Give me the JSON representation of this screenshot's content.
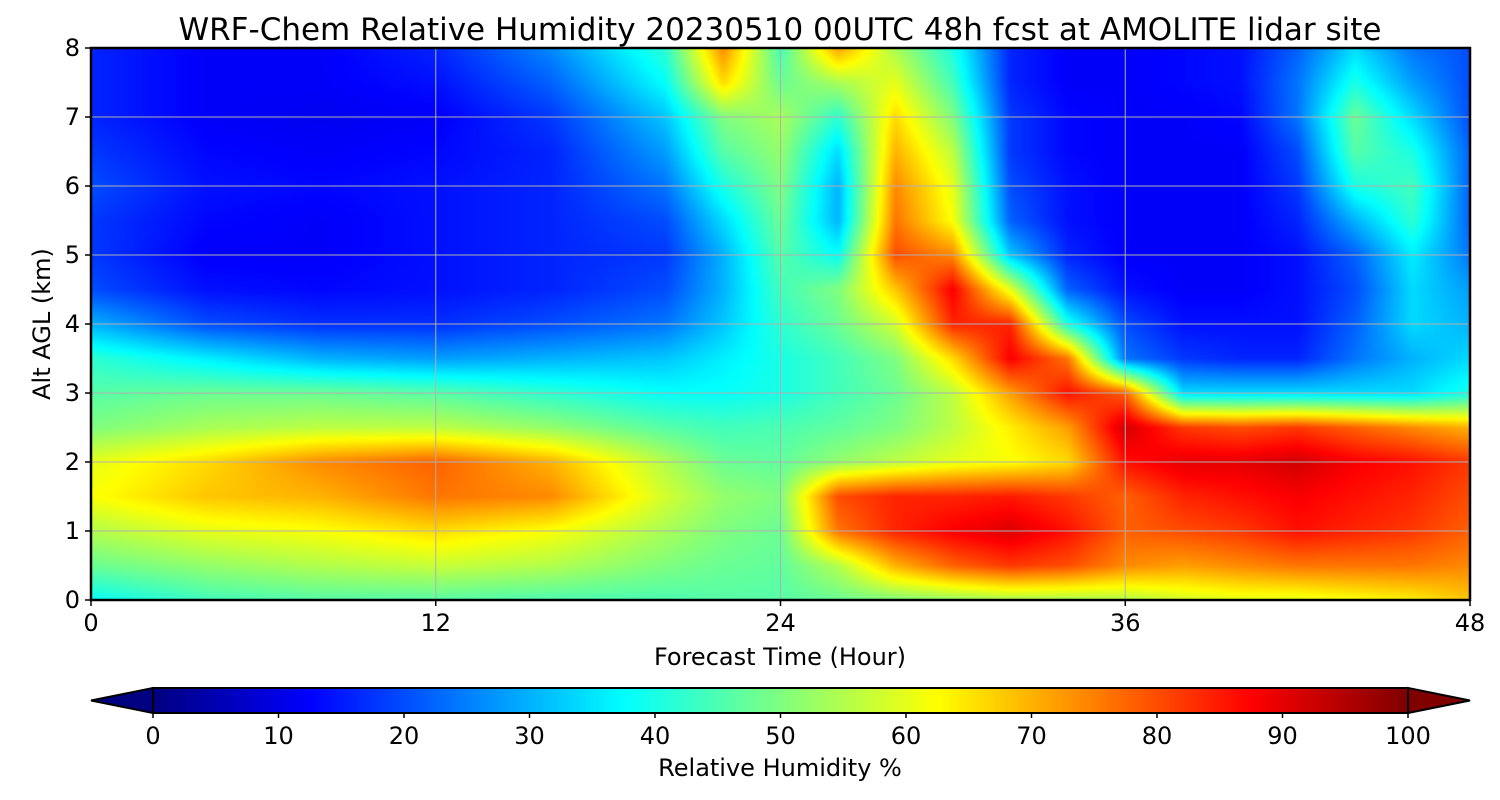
{
  "chart_data": {
    "type": "heatmap",
    "title": "WRF-Chem Relative Humidity 20230510 00UTC 48h fcst at AMOLITE lidar site",
    "xlabel": "Forecast Time (Hour)",
    "ylabel": "Alt AGL (km)",
    "xlim": [
      0,
      48
    ],
    "ylim": [
      0,
      8
    ],
    "xticks": [
      0,
      12,
      24,
      36,
      48
    ],
    "yticks": [
      0,
      1,
      2,
      3,
      4,
      5,
      6,
      7,
      8
    ],
    "grid": true,
    "colormap": "jet",
    "colorbar": {
      "label": "Relative Humidity %",
      "range": [
        0,
        100
      ],
      "ticks": [
        0,
        10,
        20,
        30,
        40,
        50,
        60,
        70,
        80,
        90,
        100
      ],
      "extend": "both",
      "placement": "bottom"
    },
    "x": [
      0,
      4,
      8,
      12,
      16,
      20,
      22,
      24,
      26,
      28,
      30,
      32,
      34,
      36,
      38,
      40,
      42,
      44,
      46,
      48
    ],
    "y": [
      0,
      0.5,
      1,
      1.5,
      2,
      2.5,
      3,
      3.5,
      4,
      4.5,
      5,
      5.5,
      6,
      6.5,
      7,
      7.5,
      8
    ],
    "z": [
      [
        38,
        44,
        46,
        46,
        45,
        45,
        46,
        46,
        48,
        50,
        52,
        54,
        54,
        55,
        58,
        60,
        60,
        62,
        64,
        68
      ],
      [
        48,
        52,
        55,
        57,
        55,
        50,
        48,
        47,
        55,
        70,
        78,
        82,
        80,
        74,
        72,
        74,
        76,
        76,
        76,
        74
      ],
      [
        55,
        60,
        62,
        66,
        62,
        54,
        50,
        48,
        76,
        84,
        88,
        91,
        86,
        78,
        80,
        82,
        86,
        84,
        82,
        78
      ],
      [
        62,
        68,
        70,
        76,
        74,
        58,
        52,
        50,
        80,
        84,
        84,
        85,
        82,
        78,
        84,
        86,
        88,
        86,
        84,
        80
      ],
      [
        60,
        66,
        74,
        78,
        70,
        55,
        48,
        47,
        52,
        56,
        60,
        62,
        66,
        86,
        90,
        90,
        92,
        88,
        86,
        82
      ],
      [
        50,
        54,
        56,
        56,
        52,
        46,
        44,
        45,
        47,
        50,
        56,
        64,
        72,
        92,
        82,
        80,
        82,
        78,
        74,
        70
      ],
      [
        46,
        48,
        48,
        46,
        42,
        38,
        38,
        40,
        44,
        48,
        56,
        72,
        86,
        78,
        34,
        34,
        34,
        34,
        34,
        40
      ],
      [
        42,
        36,
        30,
        28,
        30,
        32,
        36,
        40,
        44,
        50,
        66,
        88,
        76,
        24,
        18,
        16,
        16,
        24,
        30,
        34
      ],
      [
        30,
        20,
        17,
        17,
        20,
        24,
        32,
        42,
        48,
        58,
        84,
        84,
        40,
        20,
        14,
        14,
        14,
        22,
        34,
        30
      ],
      [
        20,
        14,
        13,
        14,
        16,
        20,
        30,
        44,
        50,
        68,
        88,
        60,
        22,
        14,
        12,
        12,
        14,
        20,
        34,
        28
      ],
      [
        18,
        12,
        12,
        14,
        16,
        18,
        30,
        46,
        38,
        80,
        74,
        32,
        16,
        12,
        12,
        12,
        14,
        22,
        36,
        24
      ],
      [
        18,
        13,
        12,
        14,
        16,
        20,
        34,
        48,
        30,
        76,
        62,
        22,
        14,
        12,
        12,
        12,
        16,
        30,
        42,
        22
      ],
      [
        20,
        14,
        13,
        14,
        16,
        24,
        40,
        50,
        30,
        74,
        60,
        20,
        14,
        12,
        12,
        12,
        18,
        40,
        44,
        22
      ],
      [
        18,
        13,
        12,
        13,
        16,
        28,
        46,
        52,
        34,
        70,
        56,
        18,
        13,
        12,
        12,
        12,
        20,
        46,
        40,
        22
      ],
      [
        16,
        12,
        11,
        12,
        18,
        32,
        50,
        54,
        42,
        66,
        50,
        18,
        13,
        12,
        12,
        13,
        24,
        48,
        34,
        20
      ],
      [
        16,
        12,
        12,
        14,
        22,
        38,
        66,
        48,
        54,
        60,
        44,
        16,
        12,
        12,
        13,
        14,
        24,
        40,
        28,
        20
      ],
      [
        16,
        12,
        12,
        16,
        26,
        42,
        74,
        44,
        72,
        54,
        40,
        16,
        12,
        12,
        13,
        14,
        22,
        34,
        24,
        20
      ]
    ]
  }
}
